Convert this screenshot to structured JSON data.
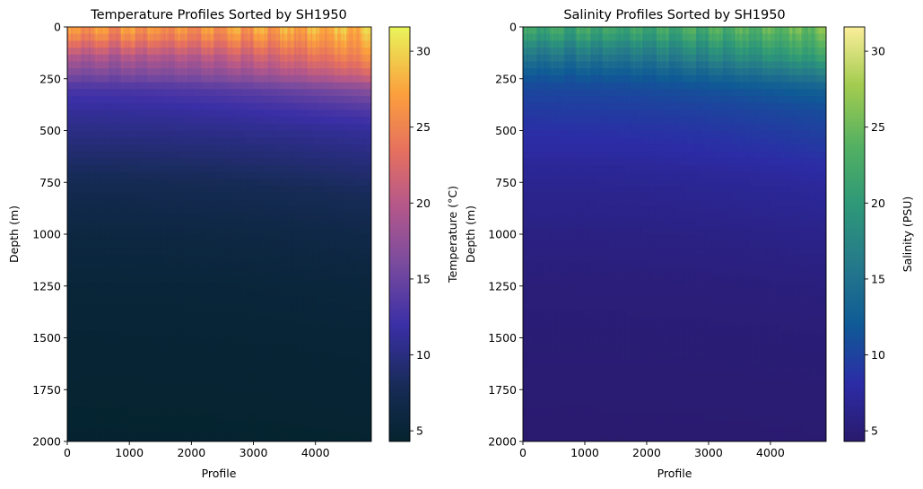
{
  "chart_data": [
    {
      "type": "heatmap",
      "title": "Temperature Profiles Sorted by SH1950",
      "xlabel": "Profile",
      "ylabel": "Depth (m)",
      "xlim": [
        0,
        4900
      ],
      "ylim": [
        2000,
        0
      ],
      "xticks": [
        0,
        1000,
        2000,
        3000,
        4000
      ],
      "yticks": [
        0,
        250,
        500,
        750,
        1000,
        1250,
        1500,
        1750,
        2000
      ],
      "colorbar": {
        "label": "Temperature (°C)",
        "colormap": "thermal",
        "range": [
          4.3,
          31.6
        ],
        "ticks": [
          5,
          10,
          15,
          20,
          25,
          30
        ]
      },
      "profile": {
        "depths": [
          0,
          50,
          100,
          150,
          200,
          250,
          300,
          400,
          500,
          600,
          700,
          800,
          1000,
          1250,
          1500,
          1750,
          2000
        ],
        "values_first": [
          27,
          25,
          22,
          19,
          17,
          15,
          13,
          11.5,
          10.5,
          9.5,
          8.5,
          7.5,
          6.3,
          5.4,
          5.0,
          4.7,
          4.5
        ],
        "values_last": [
          29.5,
          28.5,
          27.5,
          26,
          24,
          21,
          17,
          13.5,
          11.5,
          10.5,
          9.5,
          8.5,
          7,
          5.8,
          5.2,
          4.9,
          4.6
        ]
      }
    },
    {
      "type": "heatmap",
      "title": "Salinity Profiles Sorted by SH1950",
      "xlabel": "Profile",
      "ylabel": "Depth (m)",
      "xlim": [
        0,
        4900
      ],
      "ylim": [
        2000,
        0
      ],
      "xticks": [
        0,
        1000,
        2000,
        3000,
        4000
      ],
      "yticks": [
        0,
        250,
        500,
        750,
        1000,
        1250,
        1500,
        1750,
        2000
      ],
      "colorbar": {
        "label": "Salinity (PSU)",
        "colormap": "haline",
        "range": [
          4.3,
          31.6
        ],
        "ticks": [
          5,
          10,
          15,
          20,
          25,
          30
        ]
      },
      "profile": {
        "depths": [
          0,
          50,
          100,
          150,
          200,
          250,
          300,
          400,
          500,
          600,
          700,
          800,
          1000,
          1250,
          1500,
          1750,
          2000
        ],
        "values_first": [
          22,
          20,
          17,
          15,
          13,
          11.5,
          10.5,
          9.5,
          8.5,
          7.8,
          7,
          6.5,
          5.8,
          5.2,
          4.9,
          4.7,
          4.5
        ],
        "values_last": [
          26,
          24.5,
          23,
          21,
          18,
          15.5,
          13,
          11,
          10,
          9,
          8,
          7.3,
          6.3,
          5.5,
          5.0,
          4.8,
          4.6
        ]
      }
    }
  ]
}
